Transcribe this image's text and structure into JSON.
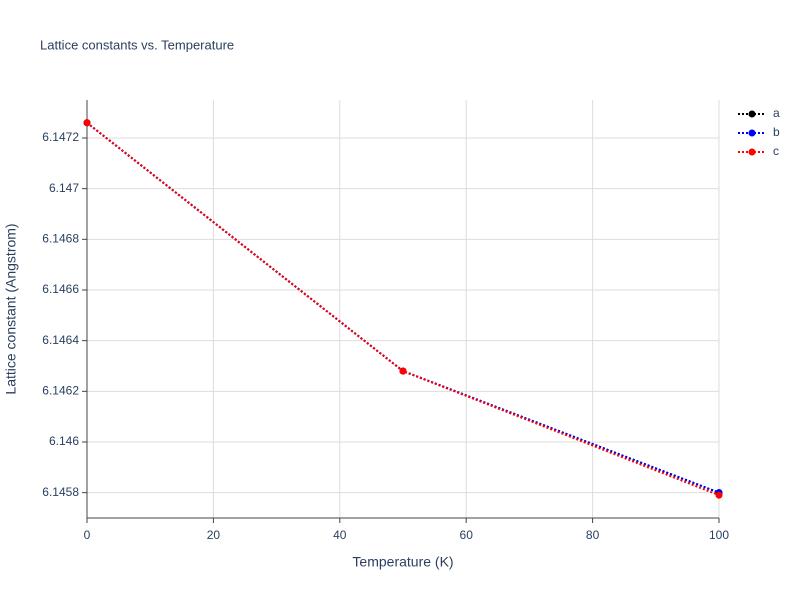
{
  "chart_data": {
    "type": "line",
    "title": "Lattice constants vs. Temperature",
    "x_label": "Temperature (K)",
    "y_label": "Lattice constant (Angstrom)",
    "x": [
      0,
      50,
      100
    ],
    "series": [
      {
        "name": "a",
        "color": "#000000",
        "values": [
          6.14726,
          6.14628,
          6.1458
        ]
      },
      {
        "name": "b",
        "color": "#0000ff",
        "values": [
          6.14726,
          6.14628,
          6.1458
        ]
      },
      {
        "name": "c",
        "color": "#ff0000",
        "values": [
          6.14726,
          6.14628,
          6.14579
        ]
      }
    ],
    "xlim": [
      0,
      100
    ],
    "xticks": [
      0,
      20,
      40,
      60,
      80,
      100
    ],
    "ylim": [
      6.1457,
      6.14735
    ],
    "yticks": [
      6.1458,
      6.146,
      6.1462,
      6.1464,
      6.1466,
      6.1468,
      6.147,
      6.1472
    ],
    "grid": true,
    "legend": "top-right"
  }
}
